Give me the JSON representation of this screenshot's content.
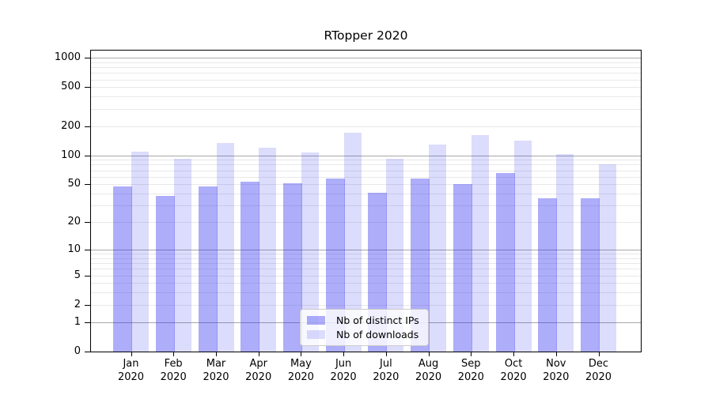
{
  "title": "RTopper 2020",
  "chart_data": {
    "type": "bar",
    "title": "RTopper 2020",
    "scale": "log1p",
    "grid": true,
    "grid_major_color": "#a8a8a8",
    "grid_minor_color": "#e8e8e8",
    "categories": [
      "Jan",
      "Feb",
      "Mar",
      "Apr",
      "May",
      "Jun",
      "Jul",
      "Aug",
      "Sep",
      "Oct",
      "Nov",
      "Dec"
    ],
    "year": "2020",
    "series": [
      {
        "name": "Nb of distinct IPs",
        "color": "rgba(40,40,240,0.38)",
        "values": [
          48,
          38,
          48,
          53,
          51,
          57,
          41,
          58,
          50,
          66,
          36,
          36
        ]
      },
      {
        "name": "Nb of downloads",
        "color": "rgba(40,40,240,0.16)",
        "values": [
          108,
          92,
          134,
          120,
          107,
          170,
          92,
          130,
          162,
          142,
          103,
          80
        ]
      }
    ],
    "y_ticks": [
      0,
      1,
      2,
      5,
      10,
      20,
      50,
      100,
      200,
      500,
      1000
    ],
    "ylim": [
      0,
      1200
    ],
    "xlabel": "",
    "ylabel": "",
    "legend_position": "lower center"
  }
}
